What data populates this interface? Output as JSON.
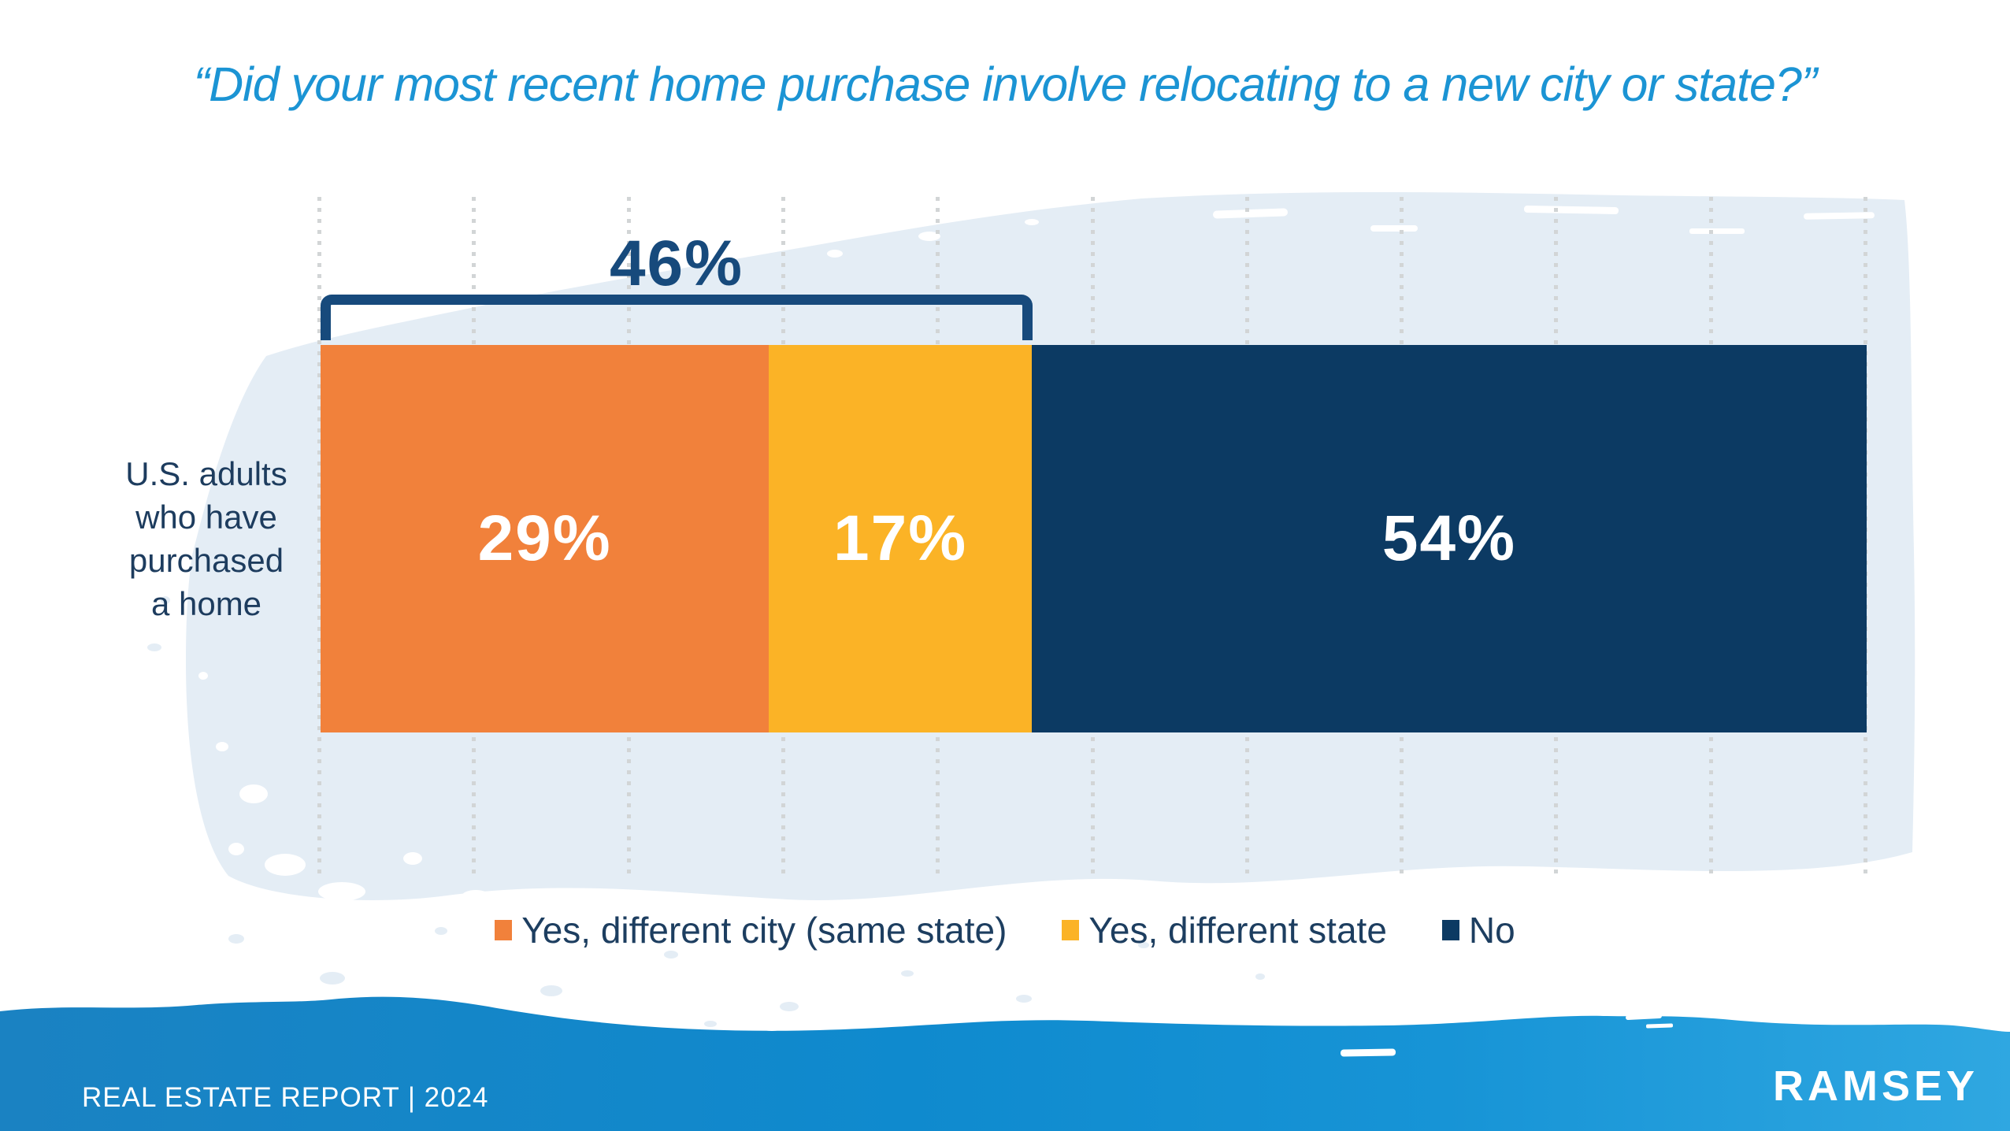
{
  "slide": {
    "title": "“Did your most recent home purchase involve relocating to a new city or state?”",
    "footer": {
      "report": "REAL ESTATE REPORT | 2024",
      "brand": "RAMSEY"
    }
  },
  "chart_data": {
    "type": "bar",
    "subtype": "horizontal-stacked",
    "title": "“Did your most recent home purchase involve relocating to a new city or state?”",
    "category": "U.S. adults who have purchased a home",
    "category_label_lines": [
      "U.S. adults",
      "who have",
      "purchased",
      "a home"
    ],
    "series": [
      {
        "name": "Yes, different city (same state)",
        "value": 29,
        "display": "29%",
        "color": "#F1813B"
      },
      {
        "name": "Yes, different state",
        "value": 17,
        "display": "17%",
        "color": "#FBB326"
      },
      {
        "name": "No",
        "value": 54,
        "display": "54%",
        "color": "#0C3A63"
      }
    ],
    "bracket_annotation": {
      "display": "46%",
      "value": 46,
      "covers": "Yes, different city (same state) + Yes, different state"
    },
    "x_axis": {
      "min": 0,
      "max": 100,
      "gridline_interval": 10,
      "gridlines": "dashed",
      "tick_labels": "none"
    },
    "legend_position": "bottom"
  },
  "colors": {
    "title_blue": "#1B94D4",
    "bar_orange": "#F1813B",
    "bar_amber": "#FBB326",
    "bar_navy": "#0C3A63",
    "bracket_navy": "#174A7C",
    "text_navy": "#1D3C5E",
    "gridline_gray": "#D2D5D6",
    "wash_light_blue": "#E4EDF5",
    "band_blue": "#0F8ACE"
  }
}
